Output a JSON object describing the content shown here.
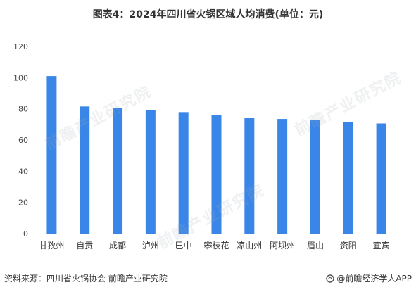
{
  "header": {
    "title": "图表4：2024年四川省火锅区域人均消费(单位：元)"
  },
  "chart_data": {
    "type": "bar",
    "title": "图表4：2024年四川省火锅区域人均消费(单位：元)",
    "categories": [
      "甘孜州",
      "自贡",
      "成都",
      "泸州",
      "巴中",
      "攀枝花",
      "凉山州",
      "阿坝州",
      "眉山",
      "资阳",
      "宜宾"
    ],
    "values": [
      101,
      81.5,
      80.3,
      79.3,
      77.9,
      76.2,
      74.0,
      73.5,
      73.0,
      71.3,
      70.6
    ],
    "ylim": [
      0,
      120
    ],
    "yticks": [
      0,
      20,
      40,
      60,
      80,
      100,
      120
    ],
    "xlabel": "",
    "ylabel": "",
    "grid": false,
    "bar_color": "#3a86e8"
  },
  "footer": {
    "source": "资料来源：四川省火锅协会 前瞻产业研究院",
    "brand": "@前瞻经济学人APP"
  },
  "watermark": {
    "text": "前瞻产业研究院"
  }
}
